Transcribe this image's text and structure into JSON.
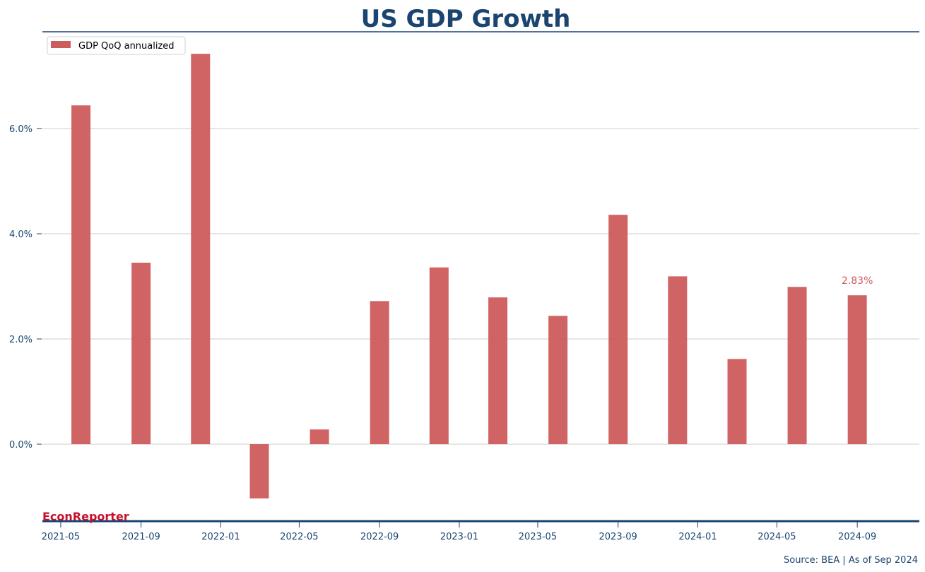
{
  "chart_data": {
    "type": "bar",
    "title": "US GDP Growth",
    "xlabel": "",
    "ylabel": "",
    "x": [
      "2021-06",
      "2021-09",
      "2021-12",
      "2022-03",
      "2022-06",
      "2022-09",
      "2022-12",
      "2023-03",
      "2023-06",
      "2023-09",
      "2023-12",
      "2024-03",
      "2024-06",
      "2024-09"
    ],
    "series": [
      {
        "name": "GDP QoQ annualized",
        "color": "#cd5c5c",
        "values": [
          6.44,
          3.45,
          7.42,
          -1.03,
          0.28,
          2.72,
          3.36,
          2.79,
          2.44,
          4.36,
          3.19,
          1.62,
          2.99,
          2.83
        ]
      }
    ],
    "ylim": [
      -1.45,
      7.75
    ],
    "yticks": [
      0,
      2,
      4,
      6
    ],
    "ytick_labels": [
      "0.0%",
      "2.0%",
      "4.0%",
      "6.0%"
    ],
    "xlim": [
      "2021-04-03",
      "2024-12-05"
    ],
    "xticks": [
      "2021-05",
      "2021-09",
      "2022-01",
      "2022-05",
      "2022-09",
      "2023-01",
      "2023-05",
      "2023-09",
      "2024-01",
      "2024-05",
      "2024-09"
    ],
    "grid": "y",
    "legend": "top-left",
    "annotations": [
      {
        "x": "2024-09",
        "text": "2.83%"
      }
    ],
    "source": "Source: BEA | As of Sep 2024",
    "brand": "EconReporter",
    "colors": {
      "title": "#1a4571",
      "bar": "#cd5c5c",
      "brand": "#c8102e",
      "axis": "#1a4571"
    }
  }
}
